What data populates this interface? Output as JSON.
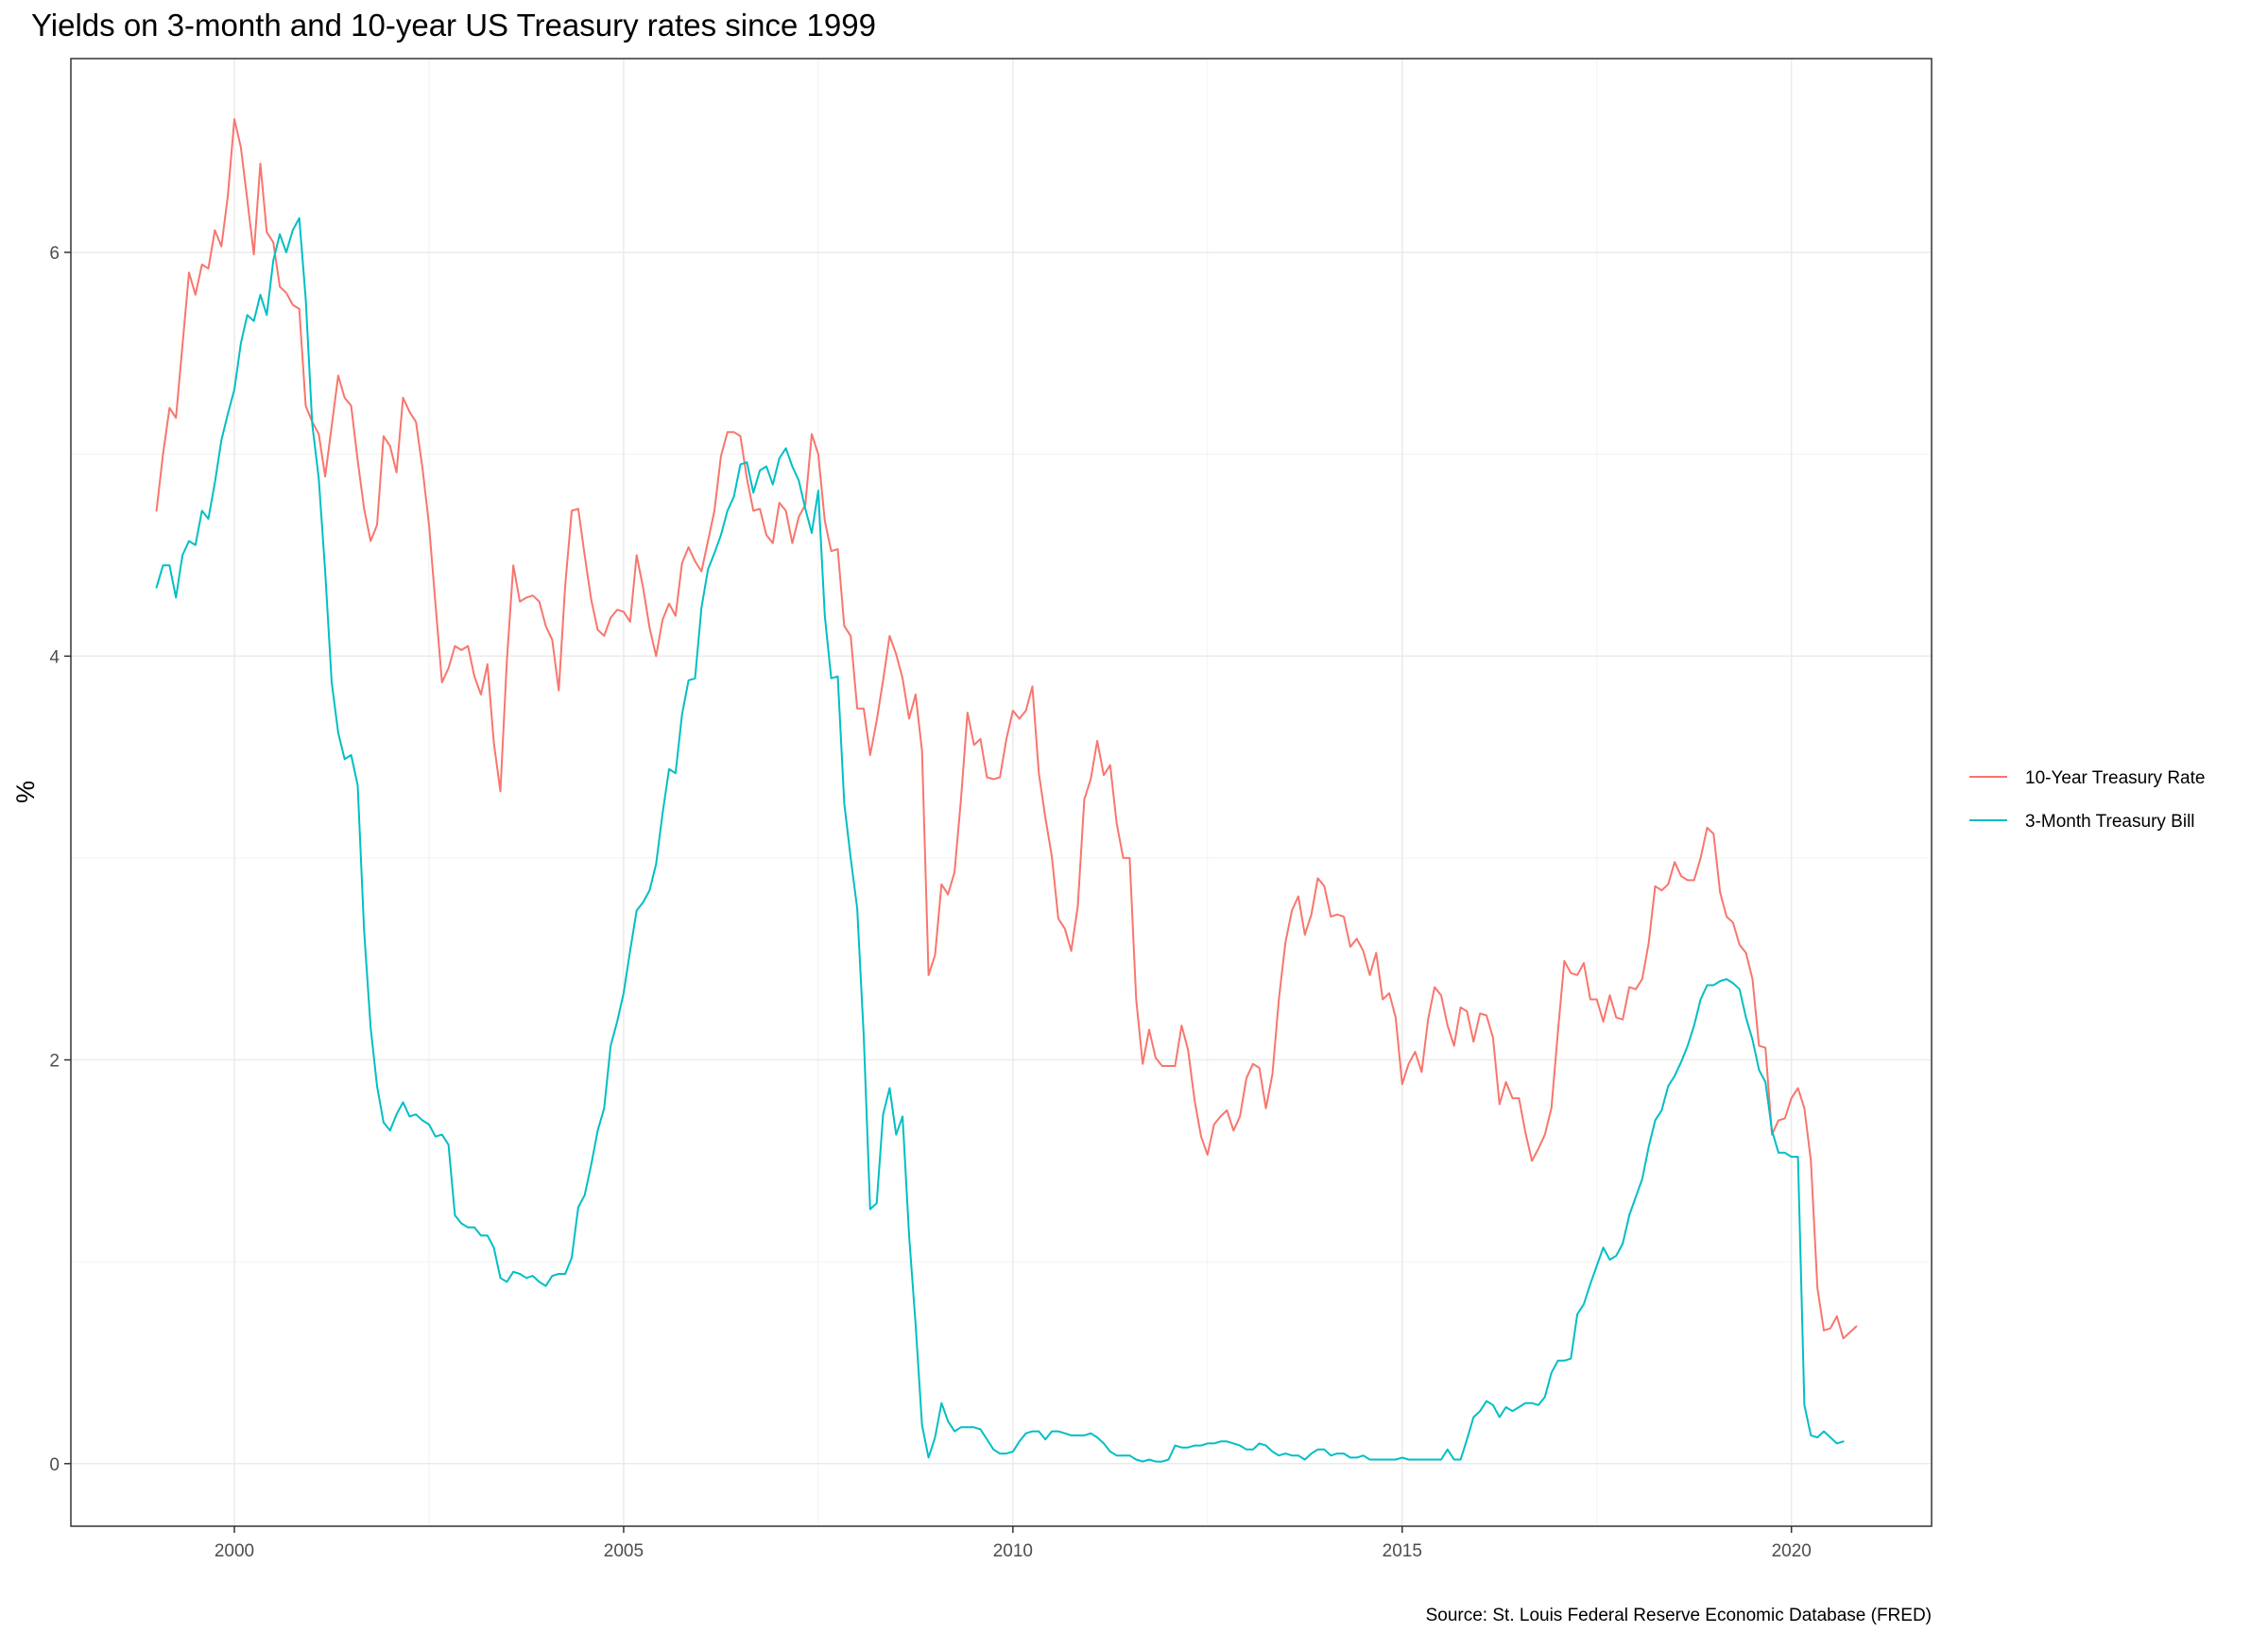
{
  "chart_data": {
    "type": "line",
    "title": "Yields on 3-month and 10-year US Treasury rates since 1999",
    "xlabel": "",
    "ylabel": "%",
    "caption": "Source: St. Louis Federal Reserve Economic Database (FRED)",
    "xlim": [
      1997.9,
      2021.8
    ],
    "ylim": [
      -0.31,
      6.96
    ],
    "x_ticks": [
      2000,
      2005,
      2010,
      2015,
      2020
    ],
    "y_ticks": [
      0,
      2,
      4,
      6
    ],
    "grid": true,
    "legend_position": "right",
    "theme": "bw",
    "x_start": 1999.0,
    "x_step": 0.0833333,
    "series": [
      {
        "name": "10-Year Treasury Rate",
        "color": "#F8766D",
        "values": [
          4.72,
          5.0,
          5.23,
          5.18,
          5.54,
          5.9,
          5.79,
          5.94,
          5.92,
          6.11,
          6.03,
          6.28,
          6.66,
          6.52,
          6.26,
          5.99,
          6.44,
          6.1,
          6.05,
          5.83,
          5.8,
          5.74,
          5.72,
          5.24,
          5.16,
          5.1,
          4.89,
          5.14,
          5.39,
          5.28,
          5.24,
          4.97,
          4.73,
          4.57,
          4.65,
          5.09,
          5.04,
          4.91,
          5.28,
          5.21,
          5.16,
          4.93,
          4.65,
          4.26,
          3.87,
          3.94,
          4.05,
          4.03,
          4.05,
          3.9,
          3.81,
          3.96,
          3.57,
          3.33,
          3.98,
          4.45,
          4.27,
          4.29,
          4.3,
          4.27,
          4.15,
          4.08,
          3.83,
          4.35,
          4.72,
          4.73,
          4.5,
          4.28,
          4.13,
          4.1,
          4.19,
          4.23,
          4.22,
          4.17,
          4.5,
          4.34,
          4.14,
          4.0,
          4.18,
          4.26,
          4.2,
          4.46,
          4.54,
          4.47,
          4.42,
          4.57,
          4.72,
          4.99,
          5.11,
          5.11,
          5.09,
          4.88,
          4.72,
          4.73,
          4.6,
          4.56,
          4.76,
          4.72,
          4.56,
          4.69,
          4.75,
          5.1,
          5.0,
          4.67,
          4.52,
          4.53,
          4.15,
          4.1,
          3.74,
          3.74,
          3.51,
          3.68,
          3.88,
          4.1,
          4.01,
          3.89,
          3.69,
          3.81,
          3.53,
          2.42,
          2.52,
          2.87,
          2.82,
          2.93,
          3.29,
          3.72,
          3.56,
          3.59,
          3.4,
          3.39,
          3.4,
          3.59,
          3.73,
          3.69,
          3.73,
          3.85,
          3.42,
          3.2,
          3.01,
          2.7,
          2.65,
          2.54,
          2.76,
          3.29,
          3.39,
          3.58,
          3.41,
          3.46,
          3.17,
          3.0,
          3.0,
          2.3,
          1.98,
          2.15,
          2.01,
          1.97,
          1.97,
          1.97,
          2.17,
          2.05,
          1.8,
          1.62,
          1.53,
          1.68,
          1.72,
          1.75,
          1.65,
          1.72,
          1.91,
          1.98,
          1.96,
          1.76,
          1.93,
          2.3,
          2.58,
          2.74,
          2.81,
          2.62,
          2.72,
          2.9,
          2.86,
          2.71,
          2.72,
          2.71,
          2.56,
          2.6,
          2.54,
          2.42,
          2.53,
          2.3,
          2.33,
          2.21,
          1.88,
          1.98,
          2.04,
          1.94,
          2.2,
          2.36,
          2.32,
          2.17,
          2.07,
          2.26,
          2.24,
          2.09,
          2.23,
          2.22,
          2.11,
          1.78,
          1.89,
          1.81,
          1.81,
          1.64,
          1.5,
          1.56,
          1.63,
          1.76,
          2.14,
          2.49,
          2.43,
          2.42,
          2.48,
          2.3,
          2.3,
          2.19,
          2.32,
          2.21,
          2.2,
          2.36,
          2.35,
          2.4,
          2.58,
          2.86,
          2.84,
          2.87,
          2.98,
          2.91,
          2.89,
          2.89,
          3.0,
          3.15,
          3.12,
          2.83,
          2.71,
          2.68,
          2.57,
          2.53,
          2.4,
          2.07,
          2.06,
          1.63,
          1.7,
          1.71,
          1.81,
          1.86,
          1.76,
          1.5,
          0.87,
          0.66,
          0.67,
          0.73,
          0.62,
          0.65,
          0.68
        ]
      },
      {
        "name": "3-Month Treasury Bill",
        "color": "#00BFC4",
        "values": [
          4.34,
          4.45,
          4.45,
          4.29,
          4.5,
          4.57,
          4.55,
          4.72,
          4.68,
          4.86,
          5.07,
          5.2,
          5.32,
          5.55,
          5.69,
          5.66,
          5.79,
          5.69,
          5.96,
          6.09,
          6.0,
          6.11,
          6.17,
          5.77,
          5.15,
          4.88,
          4.42,
          3.87,
          3.62,
          3.49,
          3.51,
          3.36,
          2.64,
          2.16,
          1.87,
          1.69,
          1.65,
          1.73,
          1.79,
          1.72,
          1.73,
          1.7,
          1.68,
          1.62,
          1.63,
          1.58,
          1.23,
          1.19,
          1.17,
          1.17,
          1.13,
          1.13,
          1.07,
          0.92,
          0.9,
          0.95,
          0.94,
          0.92,
          0.93,
          0.9,
          0.88,
          0.93,
          0.94,
          0.94,
          1.02,
          1.27,
          1.33,
          1.48,
          1.65,
          1.76,
          2.07,
          2.19,
          2.33,
          2.54,
          2.74,
          2.78,
          2.84,
          2.97,
          3.22,
          3.44,
          3.42,
          3.71,
          3.88,
          3.89,
          4.24,
          4.43,
          4.51,
          4.6,
          4.72,
          4.79,
          4.95,
          4.96,
          4.81,
          4.92,
          4.94,
          4.85,
          4.98,
          5.03,
          4.94,
          4.87,
          4.73,
          4.61,
          4.82,
          4.2,
          3.89,
          3.9,
          3.27,
          3.0,
          2.75,
          2.12,
          1.26,
          1.29,
          1.73,
          1.86,
          1.63,
          1.72,
          1.13,
          0.69,
          0.19,
          0.03,
          0.13,
          0.3,
          0.21,
          0.16,
          0.18,
          0.18,
          0.18,
          0.17,
          0.12,
          0.07,
          0.05,
          0.05,
          0.06,
          0.11,
          0.15,
          0.16,
          0.16,
          0.12,
          0.16,
          0.16,
          0.15,
          0.14,
          0.14,
          0.14,
          0.15,
          0.13,
          0.1,
          0.06,
          0.04,
          0.04,
          0.04,
          0.02,
          0.01,
          0.02,
          0.01,
          0.01,
          0.02,
          0.09,
          0.08,
          0.08,
          0.09,
          0.09,
          0.1,
          0.1,
          0.11,
          0.11,
          0.1,
          0.09,
          0.07,
          0.07,
          0.1,
          0.09,
          0.06,
          0.04,
          0.05,
          0.04,
          0.04,
          0.02,
          0.05,
          0.07,
          0.07,
          0.04,
          0.05,
          0.05,
          0.03,
          0.03,
          0.04,
          0.02,
          0.02,
          0.02,
          0.02,
          0.02,
          0.03,
          0.02,
          0.02,
          0.02,
          0.02,
          0.02,
          0.02,
          0.07,
          0.02,
          0.02,
          0.12,
          0.23,
          0.26,
          0.31,
          0.29,
          0.23,
          0.28,
          0.26,
          0.28,
          0.3,
          0.3,
          0.29,
          0.33,
          0.45,
          0.51,
          0.51,
          0.52,
          0.74,
          0.79,
          0.89,
          0.98,
          1.07,
          1.01,
          1.03,
          1.09,
          1.23,
          1.32,
          1.41,
          1.57,
          1.7,
          1.75,
          1.87,
          1.92,
          1.99,
          2.07,
          2.17,
          2.3,
          2.37,
          2.37,
          2.39,
          2.4,
          2.38,
          2.35,
          2.21,
          2.1,
          1.95,
          1.89,
          1.65,
          1.54,
          1.54,
          1.52,
          1.52,
          0.29,
          0.14,
          0.13,
          0.16,
          0.13,
          0.1,
          0.11
        ]
      }
    ]
  }
}
